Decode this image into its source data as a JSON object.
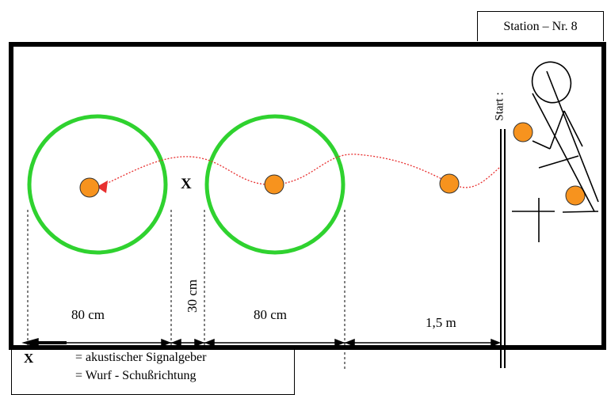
{
  "station": {
    "label": "Station – Nr. 8"
  },
  "start_label": "Start :",
  "signal_marker": "X",
  "dimensions": {
    "d1": "80 cm",
    "d2": "30 cm",
    "d3": "80 cm",
    "d4": "1,5 m"
  },
  "legend": {
    "symbol_x": "X",
    "item_1": "= akustischer Signalgeber",
    "item_2": "= Wurf - Schußrichtung"
  },
  "colors": {
    "hoop": "#2fd22f",
    "ball": "#f7931e",
    "trajectory": "#e83030",
    "line": "#000000"
  }
}
